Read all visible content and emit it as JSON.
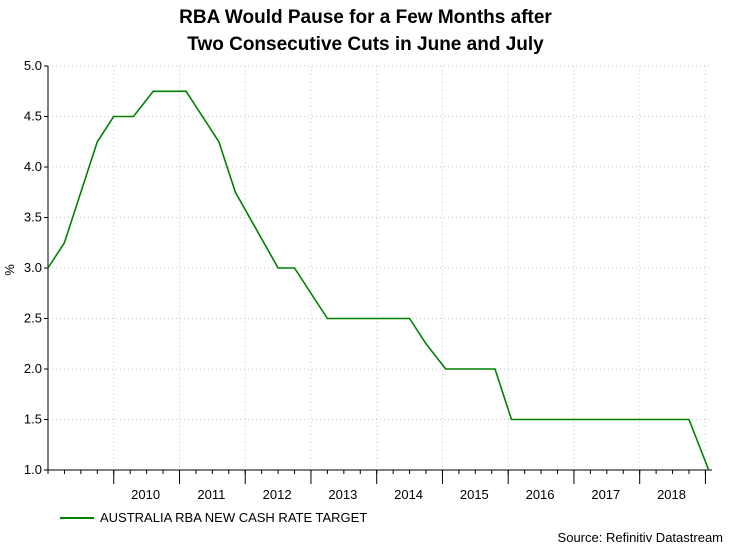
{
  "chart_data": {
    "type": "line",
    "title_line1": "RBA Would Pause for a Few Months after",
    "title_line2": "Two Consecutive Cuts in June and July",
    "ylabel": "%",
    "xlabel": "",
    "ylim": [
      1.0,
      5.0
    ],
    "yticks": [
      "5.0",
      "4.5",
      "4.0",
      "3.5",
      "3.0",
      "2.5",
      "2.0",
      "1.5",
      "1.0"
    ],
    "xlim": [
      2009.0,
      2019.1
    ],
    "xticks": [
      "2010",
      "2011",
      "2012",
      "2013",
      "2014",
      "2015",
      "2016",
      "2017",
      "2018"
    ],
    "grid": true,
    "legend_position": "bottom-left",
    "series": [
      {
        "name": "AUSTRALIA RBA NEW CASH RATE TARGET",
        "color": "#008000",
        "points": [
          [
            2009.0,
            3.0
          ],
          [
            2009.25,
            3.25
          ],
          [
            2009.75,
            4.25
          ],
          [
            2010.0,
            4.5
          ],
          [
            2010.3,
            4.5
          ],
          [
            2010.6,
            4.75
          ],
          [
            2011.1,
            4.75
          ],
          [
            2011.6,
            4.25
          ],
          [
            2011.85,
            3.75
          ],
          [
            2012.5,
            3.0
          ],
          [
            2012.75,
            3.0
          ],
          [
            2013.25,
            2.5
          ],
          [
            2014.5,
            2.5
          ],
          [
            2014.75,
            2.25
          ],
          [
            2015.05,
            2.0
          ],
          [
            2015.8,
            2.0
          ],
          [
            2016.05,
            1.5
          ],
          [
            2018.75,
            1.5
          ],
          [
            2019.05,
            1.0
          ]
        ]
      }
    ]
  },
  "footer": {
    "source": "Source: Refinitiv Datastream"
  }
}
